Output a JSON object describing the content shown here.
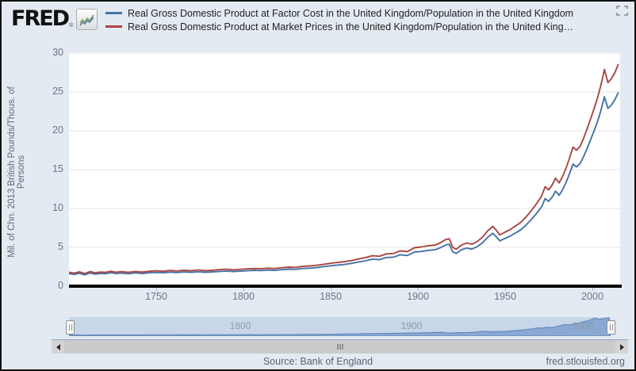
{
  "header": {
    "logo_text": "FRED",
    "logo_registered": "®"
  },
  "footer": {
    "source": "Source: Bank of England",
    "site": "fred.stlouisfed.org"
  },
  "colors": {
    "background": "#e3eaf2",
    "plot_background": "#ffffff",
    "gridline": "#e6e6e6",
    "baseline": "#000000",
    "series_blue": "#4572a7",
    "series_red": "#aa4643",
    "slider_track": "#c8d6e9",
    "slider_area_fill": "#8aa8d2",
    "slider_area_line": "#5b83b5"
  },
  "chart_data": {
    "type": "line",
    "title": "",
    "xlabel": "",
    "ylabel": "Mil. of Chn. 2013 British Pounds/Thous. of Persons",
    "xlim": [
      1700,
      2016
    ],
    "ylim": [
      0,
      30
    ],
    "xticks": [
      1750,
      1800,
      1850,
      1900,
      1950,
      2000
    ],
    "yticks": [
      0,
      5,
      10,
      15,
      20,
      25,
      30
    ],
    "grid": "horizontal",
    "legend_position": "top",
    "x": [
      1700,
      1703,
      1706,
      1709,
      1712,
      1715,
      1718,
      1721,
      1724,
      1727,
      1730,
      1734,
      1738,
      1742,
      1746,
      1750,
      1754,
      1758,
      1762,
      1766,
      1770,
      1774,
      1778,
      1782,
      1786,
      1790,
      1794,
      1798,
      1802,
      1806,
      1810,
      1814,
      1818,
      1822,
      1826,
      1830,
      1834,
      1838,
      1842,
      1846,
      1850,
      1854,
      1858,
      1862,
      1866,
      1870,
      1874,
      1878,
      1882,
      1886,
      1890,
      1894,
      1898,
      1902,
      1906,
      1910,
      1913,
      1916,
      1918,
      1920,
      1922,
      1925,
      1928,
      1931,
      1934,
      1937,
      1940,
      1943,
      1945,
      1947,
      1950,
      1953,
      1956,
      1959,
      1962,
      1965,
      1968,
      1971,
      1973,
      1975,
      1977,
      1979,
      1981,
      1983,
      1985,
      1987,
      1989,
      1991,
      1993,
      1995,
      1997,
      1999,
      2001,
      2003,
      2005,
      2007,
      2009,
      2011,
      2013,
      2015
    ],
    "series": [
      {
        "name": "factor-cost-per-capita",
        "label": "Real Gross Domestic Product at Factor Cost in the United Kingdom/Population in the United Kingdom",
        "color": "#4572a7",
        "values": [
          1.62,
          1.51,
          1.66,
          1.46,
          1.69,
          1.55,
          1.64,
          1.6,
          1.73,
          1.62,
          1.69,
          1.6,
          1.71,
          1.63,
          1.72,
          1.77,
          1.72,
          1.81,
          1.76,
          1.83,
          1.79,
          1.86,
          1.79,
          1.84,
          1.9,
          1.95,
          1.88,
          1.93,
          1.98,
          2.04,
          2.01,
          2.07,
          2.04,
          2.12,
          2.19,
          2.16,
          2.28,
          2.32,
          2.39,
          2.52,
          2.63,
          2.71,
          2.8,
          2.94,
          3.11,
          3.27,
          3.48,
          3.42,
          3.69,
          3.73,
          4.04,
          3.95,
          4.39,
          4.47,
          4.61,
          4.7,
          4.96,
          5.31,
          5.4,
          4.43,
          4.21,
          4.69,
          4.91,
          4.78,
          5.09,
          5.58,
          6.28,
          6.81,
          6.37,
          5.84,
          6.14,
          6.45,
          6.85,
          7.24,
          7.86,
          8.56,
          9.35,
          10.23,
          11.28,
          10.92,
          11.45,
          12.23,
          11.7,
          12.4,
          13.36,
          14.49,
          15.71,
          15.35,
          15.78,
          16.65,
          17.69,
          18.82,
          19.95,
          21.16,
          22.64,
          24.38,
          22.89,
          23.32,
          24.01,
          24.96
        ]
      },
      {
        "name": "market-prices-per-capita",
        "label": "Real Gross Domestic Product at Market Prices in the United Kingdom/Population in the United King…",
        "color": "#aa4643",
        "values": [
          1.8,
          1.68,
          1.85,
          1.62,
          1.88,
          1.72,
          1.82,
          1.78,
          1.92,
          1.8,
          1.88,
          1.78,
          1.9,
          1.82,
          1.92,
          1.98,
          1.92,
          2.02,
          1.96,
          2.04,
          2.0,
          2.08,
          2.0,
          2.05,
          2.12,
          2.18,
          2.1,
          2.16,
          2.22,
          2.28,
          2.25,
          2.32,
          2.28,
          2.38,
          2.45,
          2.42,
          2.55,
          2.6,
          2.68,
          2.82,
          2.95,
          3.05,
          3.15,
          3.3,
          3.5,
          3.68,
          3.92,
          3.85,
          4.15,
          4.2,
          4.55,
          4.45,
          4.95,
          5.05,
          5.2,
          5.3,
          5.6,
          6.0,
          6.1,
          5.0,
          4.75,
          5.3,
          5.55,
          5.4,
          5.75,
          6.3,
          7.1,
          7.7,
          7.2,
          6.6,
          6.95,
          7.3,
          7.75,
          8.2,
          8.9,
          9.7,
          10.6,
          11.6,
          12.8,
          12.4,
          13.0,
          13.9,
          13.3,
          14.1,
          15.2,
          16.5,
          17.9,
          17.5,
          18.0,
          19.0,
          20.2,
          21.5,
          22.8,
          24.2,
          25.9,
          27.9,
          26.2,
          26.7,
          27.5,
          28.6
        ]
      }
    ],
    "range_selector": {
      "labels": [
        "1800",
        "1900",
        "2000"
      ]
    }
  }
}
